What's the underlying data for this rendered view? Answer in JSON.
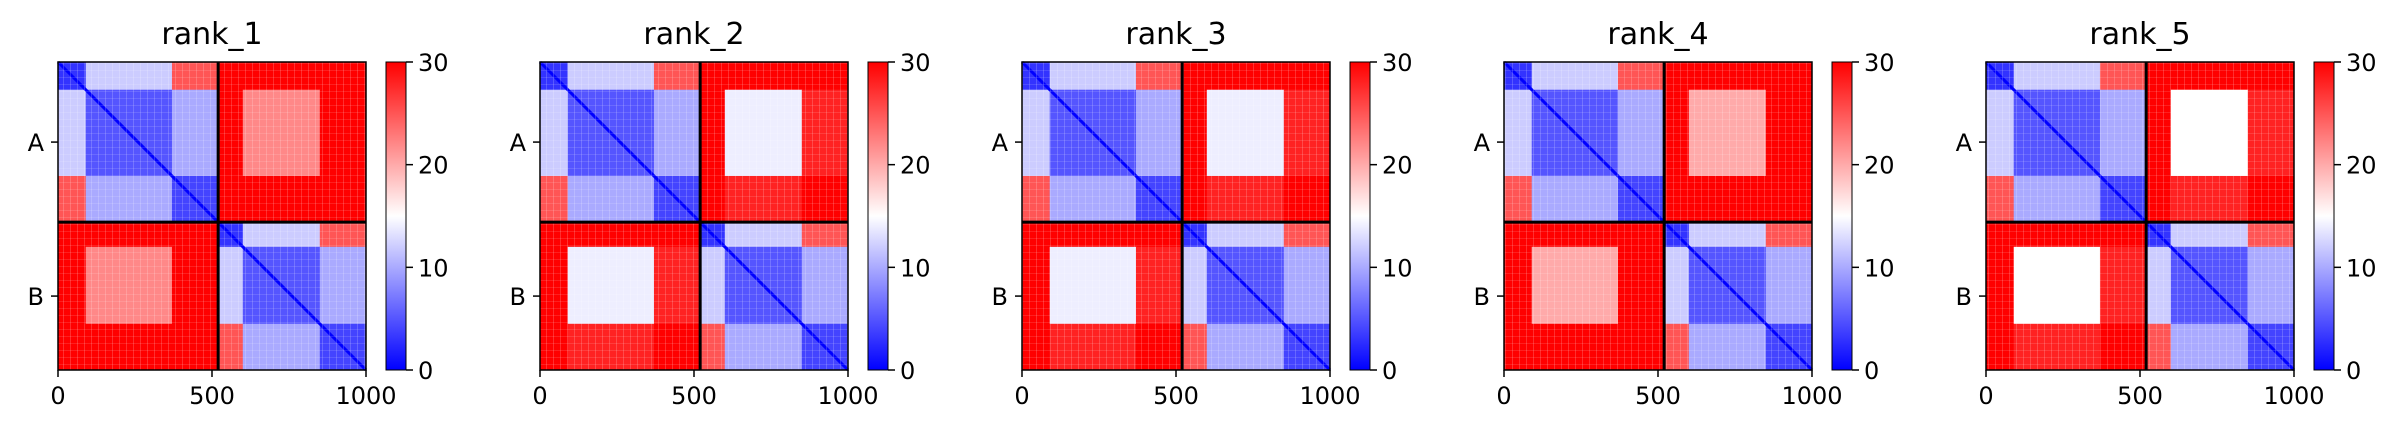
{
  "chart_data": {
    "type": "heatmap",
    "shared": {
      "row_labels": [
        "A",
        "B"
      ],
      "x_ticks": [
        0,
        500,
        1000
      ],
      "x_tick_labels": [
        "0",
        "500",
        "1000"
      ],
      "xlim": [
        0,
        1000
      ],
      "chain_boundary": 520,
      "colorbar": {
        "min": 0,
        "max": 30,
        "ticks": [
          0,
          10,
          20,
          30
        ],
        "tick_labels": [
          "0",
          "10",
          "20",
          "30"
        ],
        "colormap": "bwr",
        "low_color": "#0000ff",
        "mid_color": "#ffffff",
        "high_color": "#ff0000"
      }
    },
    "panels": [
      {
        "title": "rank_1",
        "segments": [
          0,
          90,
          370,
          520,
          600,
          850,
          1000
        ],
        "approx_block_values": [
          [
            3,
            12,
            25,
            30,
            30,
            30
          ],
          [
            12,
            5,
            10,
            30,
            22,
            30
          ],
          [
            25,
            10,
            4,
            30,
            30,
            30
          ],
          [
            30,
            30,
            30,
            3,
            12,
            25
          ],
          [
            30,
            22,
            30,
            12,
            5,
            10
          ],
          [
            30,
            30,
            30,
            25,
            10,
            4
          ]
        ]
      },
      {
        "title": "rank_2",
        "segments": [
          0,
          90,
          370,
          520,
          600,
          850,
          1000
        ],
        "approx_block_values": [
          [
            3,
            12,
            25,
            30,
            30,
            30
          ],
          [
            12,
            5,
            10,
            30,
            14,
            28
          ],
          [
            25,
            10,
            4,
            30,
            28,
            30
          ],
          [
            30,
            30,
            30,
            3,
            12,
            25
          ],
          [
            30,
            14,
            28,
            12,
            5,
            10
          ],
          [
            30,
            28,
            30,
            25,
            10,
            4
          ]
        ]
      },
      {
        "title": "rank_3",
        "segments": [
          0,
          90,
          370,
          520,
          600,
          850,
          1000
        ],
        "approx_block_values": [
          [
            3,
            12,
            25,
            30,
            30,
            30
          ],
          [
            12,
            5,
            10,
            30,
            14,
            28
          ],
          [
            25,
            10,
            4,
            30,
            28,
            30
          ],
          [
            30,
            30,
            30,
            3,
            12,
            25
          ],
          [
            30,
            14,
            28,
            12,
            5,
            10
          ],
          [
            30,
            28,
            30,
            25,
            10,
            4
          ]
        ]
      },
      {
        "title": "rank_4",
        "segments": [
          0,
          90,
          370,
          520,
          600,
          850,
          1000
        ],
        "approx_block_values": [
          [
            3,
            12,
            25,
            30,
            30,
            30
          ],
          [
            12,
            5,
            10,
            30,
            20,
            30
          ],
          [
            25,
            10,
            4,
            30,
            30,
            30
          ],
          [
            30,
            30,
            30,
            3,
            12,
            25
          ],
          [
            30,
            20,
            30,
            12,
            5,
            10
          ],
          [
            30,
            30,
            30,
            25,
            10,
            4
          ]
        ]
      },
      {
        "title": "rank_5",
        "segments": [
          0,
          90,
          370,
          520,
          600,
          850,
          1000
        ],
        "approx_block_values": [
          [
            3,
            12,
            25,
            30,
            30,
            30
          ],
          [
            12,
            5,
            10,
            30,
            15,
            28
          ],
          [
            25,
            10,
            4,
            30,
            28,
            30
          ],
          [
            30,
            30,
            30,
            3,
            12,
            25
          ],
          [
            30,
            15,
            28,
            12,
            5,
            10
          ],
          [
            30,
            28,
            30,
            25,
            10,
            4
          ]
        ]
      }
    ]
  }
}
